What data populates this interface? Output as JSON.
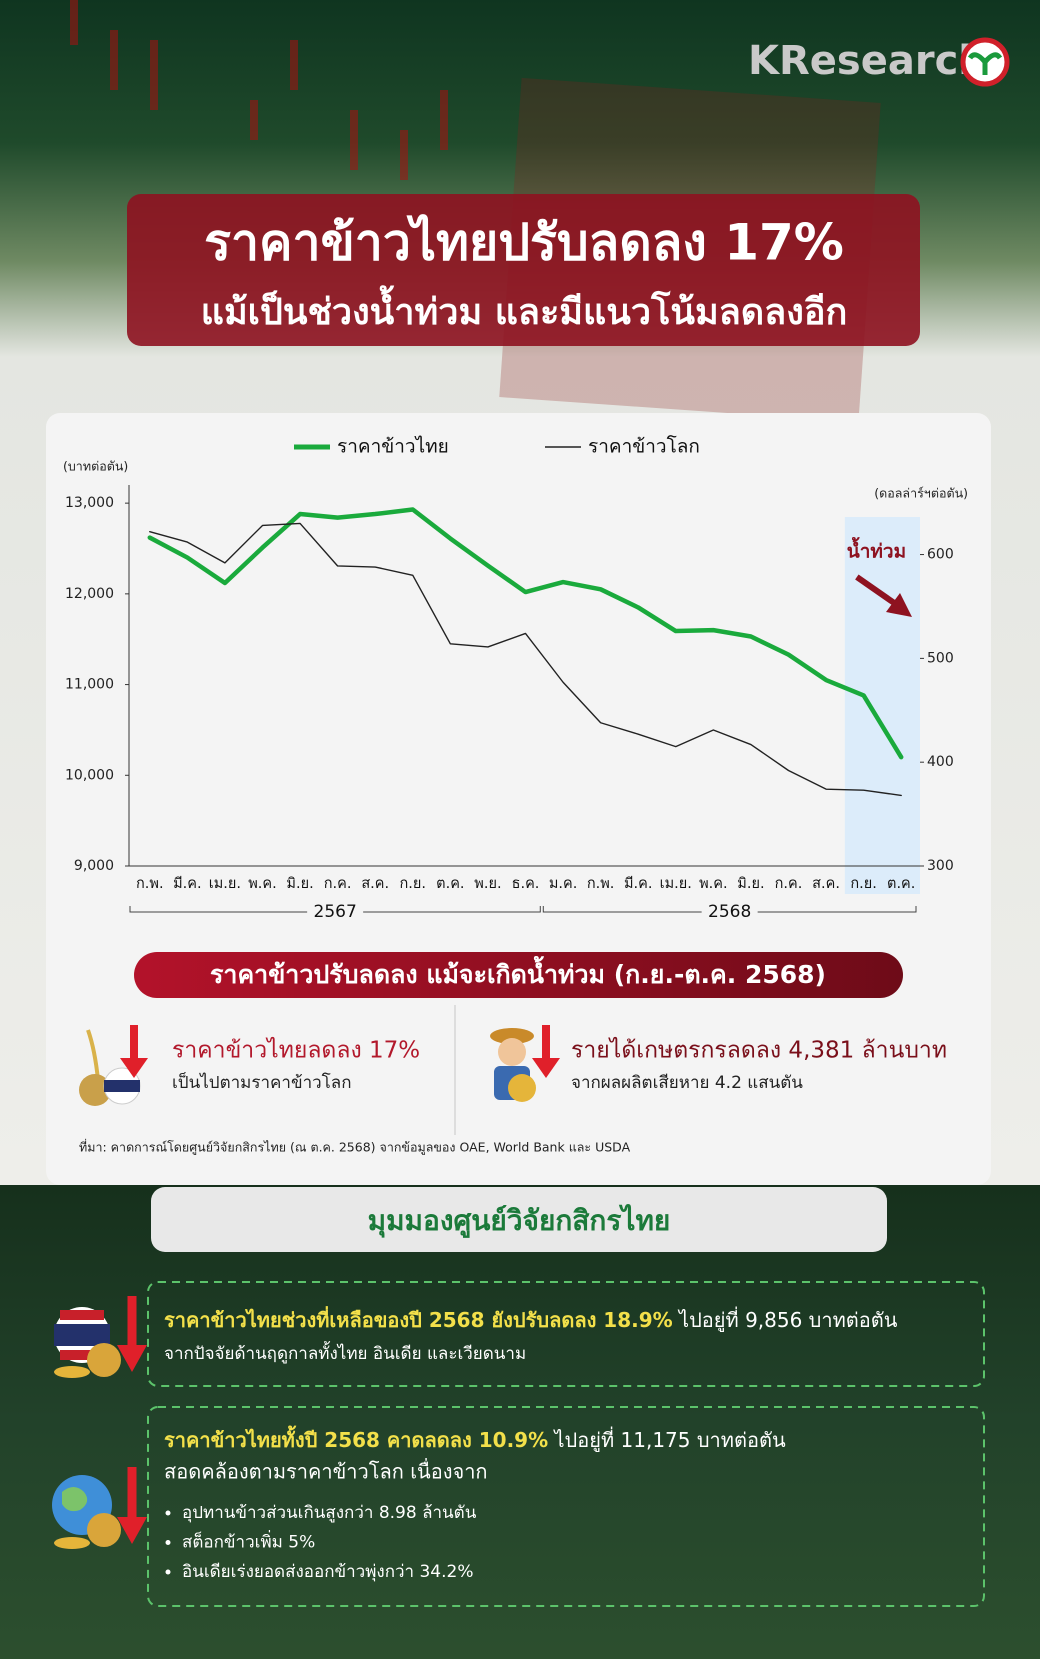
{
  "header": {
    "logo": "KResearch",
    "title": "ราคาข้าวไทยปรับลดลง 17%",
    "subtitle": "แม้เป็นช่วงน้ำท่วม และมีแนวโน้มลดลงอีก"
  },
  "chart_data": {
    "type": "line",
    "y_label": "(บาทต่อตัน)",
    "y2_label": "(ดอลล่าร์ฯต่อตัน)",
    "categories": [
      "ก.พ.",
      "มี.ค.",
      "เม.ย.",
      "พ.ค.",
      "มิ.ย.",
      "ก.ค.",
      "ส.ค.",
      "ก.ย.",
      "ต.ค.",
      "พ.ย.",
      "ธ.ค.",
      "ม.ค.",
      "ก.พ.",
      "มี.ค.",
      "เม.ย.",
      "พ.ค.",
      "มิ.ย.",
      "ก.ค.",
      "ส.ค.",
      "ก.ย.",
      "ต.ค."
    ],
    "year_groups": [
      {
        "label": "2567",
        "span": [
          0,
          10
        ]
      },
      {
        "label": "2568",
        "span": [
          11,
          20
        ]
      }
    ],
    "series": [
      {
        "name": "ราคาข้าวไทย",
        "color": "#1aaa3c",
        "values": [
          12620,
          12400,
          12120,
          12510,
          12880,
          12840,
          12880,
          12930,
          12610,
          12310,
          12020,
          12130,
          12050,
          11850,
          11590,
          11600,
          11530,
          11330,
          11050,
          10880,
          10200
        ]
      },
      {
        "name": "ราคาข้าวโลก",
        "color": "#222222",
        "axis": "y2",
        "values": [
          622,
          612,
          592,
          628,
          630,
          589,
          588,
          580,
          514,
          511,
          524,
          477,
          438,
          427,
          415,
          431,
          417,
          392,
          374,
          373,
          368
        ]
      }
    ],
    "ylim": [
      9000,
      13200
    ],
    "yticks": [
      {
        "value": 9000,
        "label": "9,000"
      },
      {
        "value": 10000,
        "label": "10,000"
      },
      {
        "value": 11000,
        "label": "11,000"
      },
      {
        "value": 12000,
        "label": "12,000"
      },
      {
        "value": 13000,
        "label": "13,000"
      }
    ],
    "y2lim": [
      300,
      667
    ],
    "y2ticks": [
      300,
      400,
      500,
      600
    ],
    "annotation": {
      "label": "น้ำท่วม",
      "span": [
        19,
        20
      ]
    }
  },
  "summary": {
    "banner": "ราคาข้าวปรับลดลง แม้จะเกิดน้ำท่วม (ก.ย.-ต.ค. 2568)",
    "items": [
      {
        "headline": "ราคาข้าวไทยลดลง 17%",
        "detail": "เป็นไปตามราคาข้าวโลก"
      },
      {
        "headline": "รายได้เกษตรกรลดลง 4,381 ล้านบาท",
        "detail": "จากผลผลิตเสียหาย 4.2 แสนตัน"
      }
    ],
    "source": "ที่มา: คาดการณ์โดยศูนย์วิจัยกสิกรไทย (ณ ต.ค. 2568) จากข้อมูลของ OAE, World Bank และ USDA"
  },
  "outlook": {
    "title": "มุมมองศูนย์วิจัยกสิกรไทย",
    "points": [
      {
        "highlight": "ราคาข้าวไทยช่วงที่เหลือของปี 2568 ยังปรับลดลง 18.9%",
        "rest": " ไปอยู่ที่ 9,856 บาทต่อตัน",
        "detail": "จากปัจจัยด้านฤดูกาลทั้งไทย อินเดีย และเวียดนาม"
      },
      {
        "highlight": "ราคาข้าวไทยทั้งปี 2568 คาดลดลง 10.9%",
        "rest": " ไปอยู่ที่ 11,175 บาทต่อตัน",
        "detail": "สอดคล้องตามราคาข้าวโลก เนื่องจาก",
        "bullets": [
          "อุปทานข้าวส่วนเกินสูงกว่า 8.98 ล้านตัน",
          "สต็อกข้าวเพิ่ม 5%",
          "อินเดียเร่งยอดส่งออกข้าวพุ่งกว่า 34.2%"
        ]
      }
    ]
  }
}
